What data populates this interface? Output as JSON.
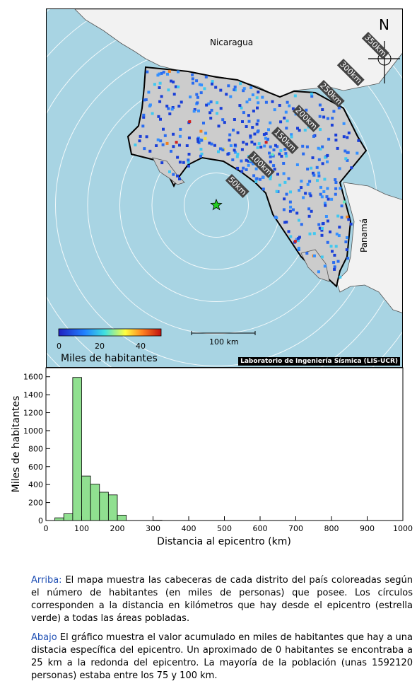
{
  "map": {
    "countries": {
      "north": "Nicaragua",
      "east": "Panamá"
    },
    "ring_labels": [
      "50km",
      "100km",
      "150km",
      "200km",
      "250km",
      "300km",
      "350km"
    ],
    "north_label": "N",
    "scale_label": "100 km",
    "credit": "Laboratorio de Ingeniería Sísmica (LIS-UCR)",
    "colorbar": {
      "title": "Miles de habitantes",
      "ticks": [
        "0",
        "20",
        "40"
      ],
      "min": 0,
      "max": 50
    },
    "colors": {
      "ocean": "#a8d4e3",
      "costa_rica": "#cccccc",
      "neighbors": "#f2f2f2",
      "epicenter": "#22cc22"
    },
    "epicenter_marker": "star-icon"
  },
  "chart_data": {
    "type": "bar",
    "xlabel": "Distancia al epicentro (km)",
    "ylabel": "Miles de habitantes",
    "xlim": [
      0,
      1000
    ],
    "ylim": [
      0,
      1700
    ],
    "x_ticks": [
      "0",
      "100",
      "200",
      "300",
      "400",
      "500",
      "600",
      "700",
      "800",
      "900",
      "1000"
    ],
    "y_ticks": [
      "0",
      "200",
      "400",
      "600",
      "800",
      "1000",
      "1200",
      "1400",
      "1600"
    ],
    "bin_width": 25,
    "bins": [
      {
        "start": 25,
        "value": 30
      },
      {
        "start": 50,
        "value": 75
      },
      {
        "start": 75,
        "value": 1592
      },
      {
        "start": 100,
        "value": 495
      },
      {
        "start": 125,
        "value": 405
      },
      {
        "start": 150,
        "value": 315
      },
      {
        "start": 175,
        "value": 285
      },
      {
        "start": 200,
        "value": 60
      },
      {
        "start": 300,
        "value": 3
      }
    ],
    "bar_color": "#90e090"
  },
  "caption": {
    "top_lead": "Arriba:",
    "top_text": " El mapa muestra las cabeceras de cada distrito del país coloreadas según el número de habitantes (en miles de personas) que posee.  Los círculos corresponden a la distancia en kilómetros que hay desde el epicentro (estrella verde) a todas las áreas pobladas.",
    "bottom_lead": "Abajo",
    "bottom_text": " El gráfico muestra el valor acumulado en miles de habitantes que hay a una distacia específica del epicentro.  Un aproximado de 0 habitantes se encontraba a 25 km a la redonda del epicentro.  La mayoría de la población (unas 1592120 personas) estaba entre los 75 y 100 km."
  }
}
